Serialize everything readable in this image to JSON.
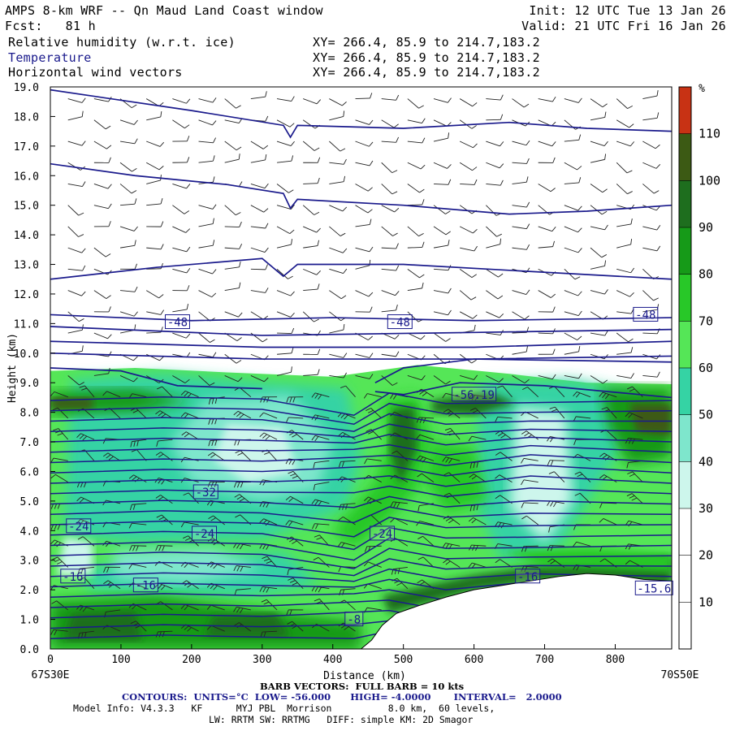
{
  "header": {
    "title": "AMPS 8-km WRF -- Qn Maud Land Coast window",
    "fcst": "Fcst:   81 h",
    "init": "Init: 12 UTC Tue 13 Jan 26",
    "valid": "Valid: 21 UTC Fri 16 Jan 26",
    "fields": [
      {
        "name": "Relative humidity (w.r.t. ice)",
        "xy": "XY= 266.4, 85.9 to 214.7,183.2",
        "color": "#000000"
      },
      {
        "name": "Temperature",
        "xy": "XY= 266.4, 85.9 to 214.7,183.2",
        "color": "#1a1a8c"
      },
      {
        "name": "Horizontal wind vectors",
        "xy": "XY= 266.4, 85.9 to 214.7,183.2",
        "color": "#000000"
      }
    ]
  },
  "footer": {
    "barb": "BARB VECTORS:  FULL BARB = 10 kts",
    "contours": "CONTOURS:  UNITS=°C  LOW= -56.000      HIGH= -4.0000       INTERVAL=   2.0000",
    "model1": "Model Info: V4.3.3   KF      MYJ PBL  Morrison          8.0 km,  60 levels,",
    "model2": "LW: RRTM SW: RRTMG   DIFF: simple KM: 2D Smagor"
  },
  "chart_data": {
    "type": "cross-section",
    "xlabel": "Distance (km)",
    "ylabel": "Height (km)",
    "xlim": [
      0,
      880
    ],
    "ylim": [
      0,
      19
    ],
    "x_ticks": [
      0,
      100,
      200,
      300,
      400,
      500,
      600,
      700,
      800
    ],
    "y_ticks": [
      "0.0",
      "1.0",
      "2.0",
      "3.0",
      "4.0",
      "5.0",
      "6.0",
      "7.0",
      "8.0",
      "9.0",
      "10.0",
      "11.0",
      "12.0",
      "13.0",
      "14.0",
      "15.0",
      "16.0",
      "17.0",
      "18.0",
      "19.0"
    ],
    "left_endpoint": "67S30E",
    "right_endpoint": "70S50E",
    "colorbar": {
      "unit": "%",
      "ticks": [
        10,
        20,
        30,
        40,
        50,
        60,
        70,
        80,
        90,
        100,
        110
      ],
      "bins": [
        {
          "range": [
            0,
            10
          ],
          "color": "#ffffff"
        },
        {
          "range": [
            10,
            20
          ],
          "color": "#ffffff"
        },
        {
          "range": [
            20,
            30
          ],
          "color": "#ffffff"
        },
        {
          "range": [
            30,
            40
          ],
          "color": "#cdf6ec"
        },
        {
          "range": [
            40,
            50
          ],
          "color": "#7ee6cc"
        },
        {
          "range": [
            50,
            60
          ],
          "color": "#35d3a4"
        },
        {
          "range": [
            60,
            70
          ],
          "color": "#55e657"
        },
        {
          "range": [
            70,
            80
          ],
          "color": "#28c828"
        },
        {
          "range": [
            80,
            90
          ],
          "color": "#169a18"
        },
        {
          "range": [
            90,
            100
          ],
          "color": "#1e6e1e"
        },
        {
          "range": [
            100,
            110
          ],
          "color": "#3c5a14"
        },
        {
          "range": [
            110,
            120
          ],
          "color": "#c83214"
        }
      ]
    },
    "contour_labels": [
      {
        "text": "-48",
        "x": 180,
        "y": 11.05
      },
      {
        "text": "-48",
        "x": 495,
        "y": 11.05
      },
      {
        "text": "-48",
        "x": 843,
        "y": 11.3
      },
      {
        "text": "-56.19",
        "x": 600,
        "y": 8.6
      },
      {
        "text": "-32",
        "x": 220,
        "y": 5.3
      },
      {
        "text": "-24",
        "x": 40,
        "y": 4.15
      },
      {
        "text": "-24",
        "x": 218,
        "y": 3.9
      },
      {
        "text": "-24",
        "x": 470,
        "y": 3.9
      },
      {
        "text": "-16",
        "x": 32,
        "y": 2.45
      },
      {
        "text": "-16",
        "x": 135,
        "y": 2.15
      },
      {
        "text": "-16",
        "x": 676,
        "y": 2.45
      },
      {
        "text": "-15.6",
        "x": 855,
        "y": 2.05
      },
      {
        "text": "-8",
        "x": 430,
        "y": 1.0
      }
    ],
    "terrain": [
      [
        0,
        0
      ],
      [
        440,
        0
      ],
      [
        455,
        0.3
      ],
      [
        470,
        0.8
      ],
      [
        490,
        1.2
      ],
      [
        520,
        1.45
      ],
      [
        560,
        1.75
      ],
      [
        600,
        2.0
      ],
      [
        640,
        2.15
      ],
      [
        680,
        2.3
      ],
      [
        720,
        2.45
      ],
      [
        760,
        2.55
      ],
      [
        800,
        2.5
      ],
      [
        840,
        2.35
      ],
      [
        880,
        2.3
      ]
    ]
  }
}
